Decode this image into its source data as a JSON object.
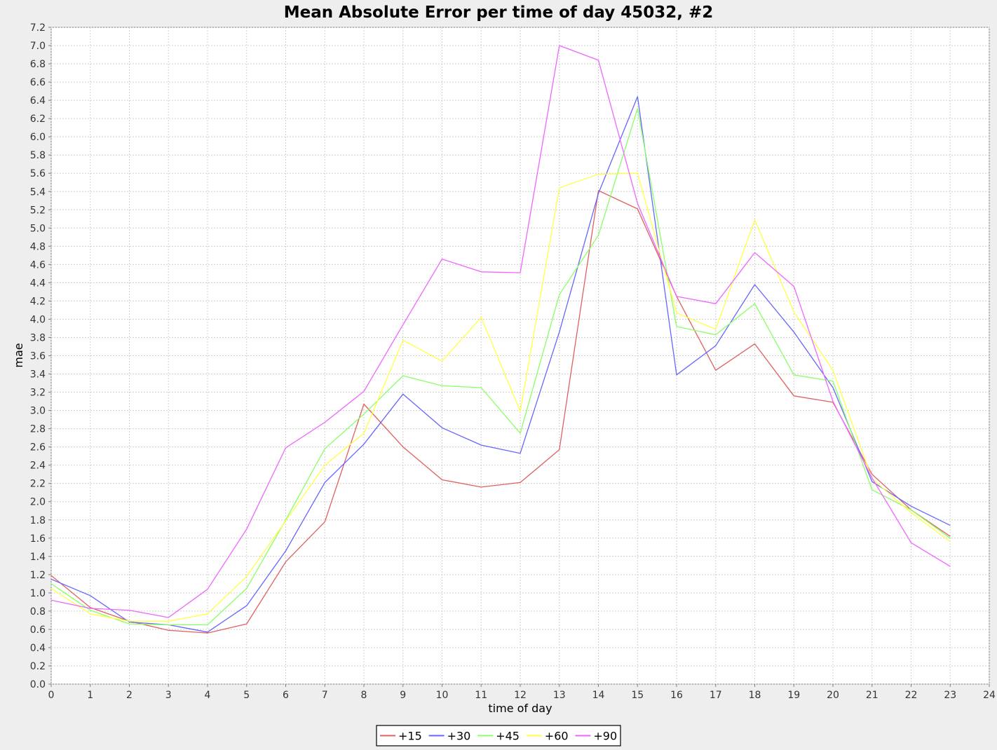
{
  "chart_data": {
    "type": "line",
    "title": "Mean Absolute Error per time of day 45032, #2",
    "xlabel": "time of day",
    "ylabel": "mae",
    "xlim": [
      0,
      24
    ],
    "ylim": [
      0.0,
      7.2
    ],
    "x_ticks": [
      0,
      1,
      2,
      3,
      4,
      5,
      6,
      7,
      8,
      9,
      10,
      11,
      12,
      13,
      14,
      15,
      16,
      17,
      18,
      19,
      20,
      21,
      22,
      23,
      24
    ],
    "y_ticks": [
      "0.0",
      "0.2",
      "0.4",
      "0.6",
      "0.8",
      "1.0",
      "1.2",
      "1.4",
      "1.6",
      "1.8",
      "2.0",
      "2.2",
      "2.4",
      "2.6",
      "2.8",
      "3.0",
      "3.2",
      "3.4",
      "3.6",
      "3.8",
      "4.0",
      "4.2",
      "4.4",
      "4.6",
      "4.8",
      "5.0",
      "5.2",
      "5.4",
      "5.6",
      "5.8",
      "6.0",
      "6.2",
      "6.4",
      "6.6",
      "6.8",
      "7.0",
      "7.2"
    ],
    "grid": true,
    "legend_position": "bottom",
    "x": [
      0,
      1,
      2,
      3,
      4,
      5,
      6,
      7,
      8,
      9,
      10,
      11,
      12,
      13,
      14,
      15,
      16,
      17,
      18,
      19,
      20,
      21,
      22,
      23
    ],
    "series": [
      {
        "name": "+15",
        "color": "#e06060",
        "values": [
          1.19,
          0.84,
          0.69,
          0.59,
          0.56,
          0.66,
          1.34,
          1.78,
          3.07,
          2.6,
          2.24,
          2.16,
          2.21,
          2.57,
          5.41,
          5.21,
          4.25,
          3.44,
          3.73,
          3.16,
          3.09,
          2.3,
          1.91,
          1.62
        ]
      },
      {
        "name": "+30",
        "color": "#6666ff",
        "values": [
          1.15,
          0.97,
          0.68,
          0.65,
          0.57,
          0.86,
          1.46,
          2.21,
          2.63,
          3.18,
          2.81,
          2.62,
          2.53,
          3.86,
          5.38,
          6.44,
          3.39,
          3.71,
          4.38,
          3.86,
          3.25,
          2.22,
          1.95,
          1.74
        ]
      },
      {
        "name": "+45",
        "color": "#88ff66",
        "values": [
          1.1,
          0.81,
          0.66,
          0.65,
          0.65,
          1.05,
          1.8,
          2.58,
          2.96,
          3.38,
          3.27,
          3.25,
          2.75,
          4.27,
          4.92,
          6.31,
          3.92,
          3.83,
          4.17,
          3.39,
          3.32,
          2.13,
          1.91,
          1.6
        ]
      },
      {
        "name": "+60",
        "color": "#ffff44",
        "values": [
          1.05,
          0.77,
          0.69,
          0.69,
          0.77,
          1.18,
          1.79,
          2.4,
          2.75,
          3.77,
          3.54,
          4.02,
          2.99,
          5.44,
          5.59,
          5.6,
          4.07,
          3.89,
          5.09,
          4.08,
          3.44,
          2.25,
          1.88,
          1.56
        ]
      },
      {
        "name": "+90",
        "color": "#ee66ff",
        "values": [
          0.92,
          0.83,
          0.81,
          0.73,
          1.04,
          1.7,
          2.59,
          2.87,
          3.21,
          3.94,
          4.66,
          4.52,
          4.51,
          7.0,
          6.84,
          5.27,
          4.25,
          4.17,
          4.73,
          4.36,
          3.1,
          2.26,
          1.55,
          1.29
        ]
      }
    ]
  }
}
